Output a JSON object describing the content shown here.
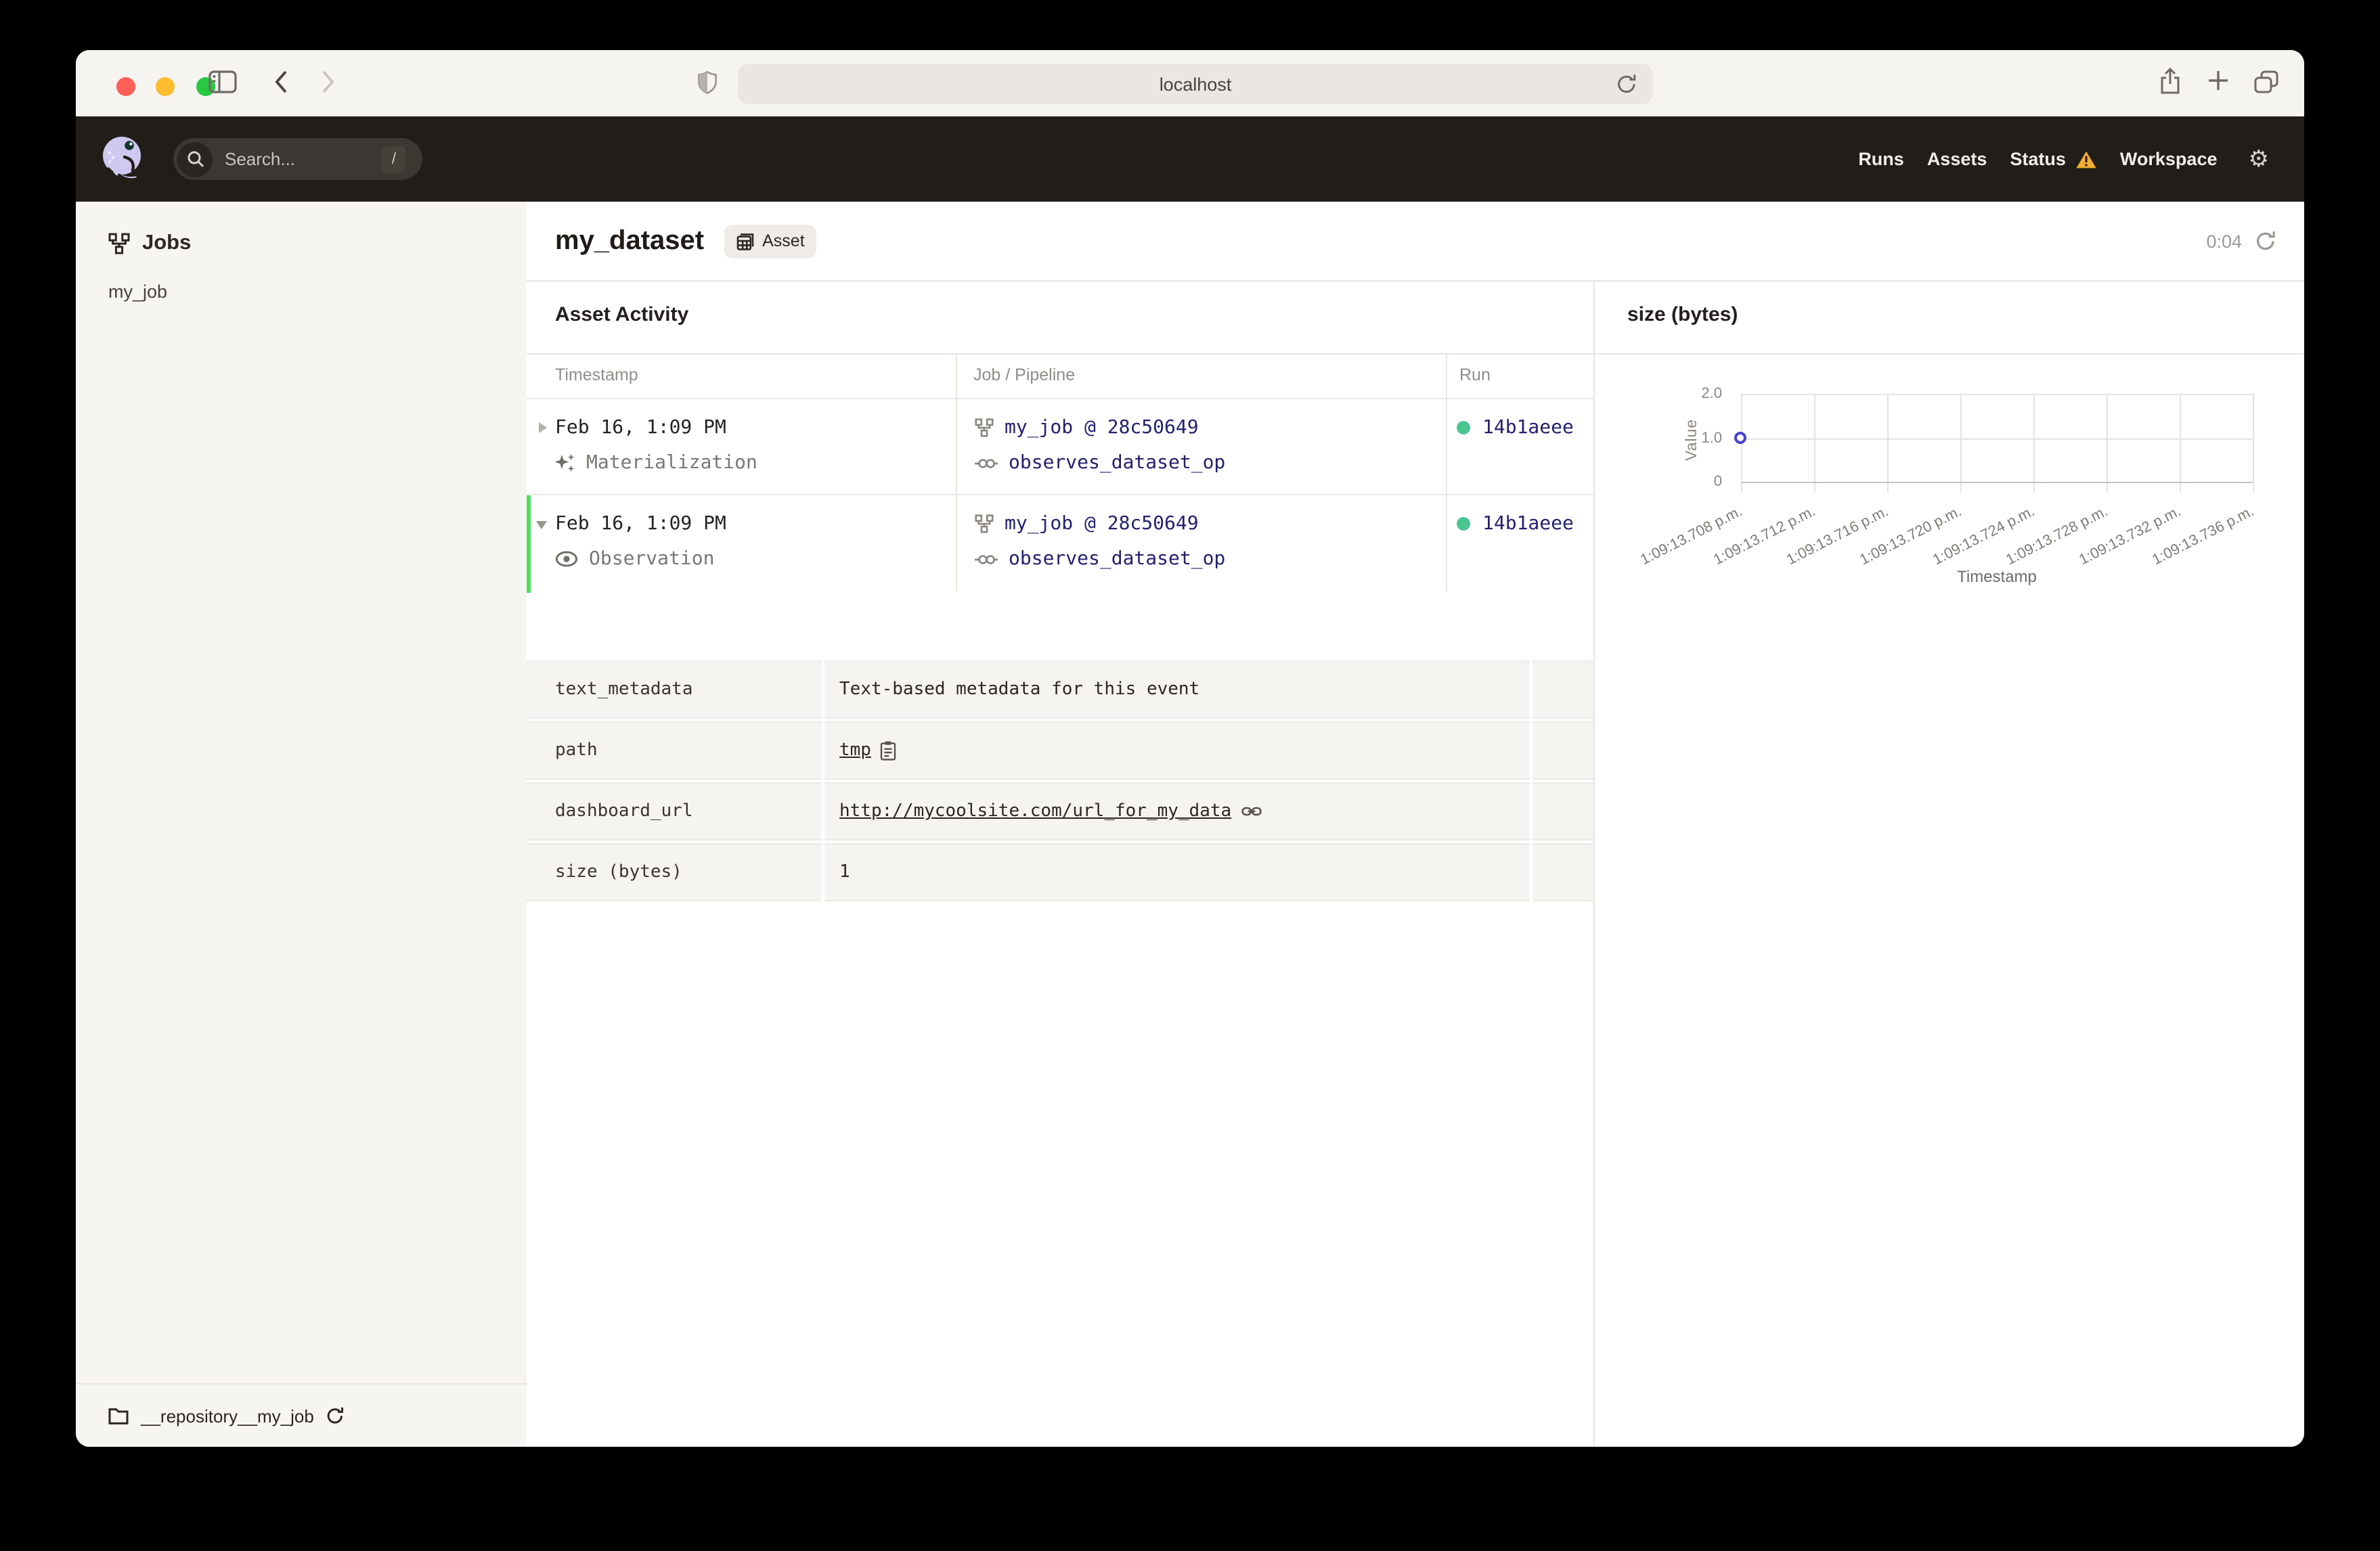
{
  "browser": {
    "url": "localhost",
    "traffic_lights": {
      "close": "#ff5f57",
      "minimize": "#febc2e",
      "zoom": "#28c840"
    }
  },
  "app_header": {
    "search_placeholder": "Search...",
    "search_shortcut": "/",
    "nav": [
      {
        "label": "Runs"
      },
      {
        "label": "Assets"
      },
      {
        "label": "Status",
        "warning": true
      },
      {
        "label": "Workspace"
      }
    ],
    "gear": "⚙"
  },
  "sidebar": {
    "title": "Jobs",
    "items": [
      {
        "label": "my_job"
      }
    ],
    "footer": {
      "repository": "__repository__my_job"
    }
  },
  "asset_page": {
    "title": "my_dataset",
    "badge": "Asset",
    "poll_timer": "0:04",
    "activity": {
      "heading": "Asset Activity",
      "columns": {
        "timestamp": "Timestamp",
        "job": "Job / Pipeline",
        "run": "Run"
      },
      "events": [
        {
          "timestamp": "Feb 16, 1:09 PM",
          "type": "Materialization",
          "expanded": false,
          "job": "my_job @ 28c50649",
          "op": "observes_dataset_op",
          "run_id": "14b1aeee",
          "run_status_color": "#4bc58f"
        },
        {
          "timestamp": "Feb 16, 1:09 PM",
          "type": "Observation",
          "expanded": true,
          "job": "my_job @ 28c50649",
          "op": "observes_dataset_op",
          "run_id": "14b1aeee",
          "run_status_color": "#4bc58f"
        }
      ],
      "metadata": [
        {
          "key": "text_metadata",
          "value": "Text-based metadata for this event"
        },
        {
          "key": "path",
          "value": "tmp",
          "icon": "copy-icon"
        },
        {
          "key": "dashboard_url",
          "value": "http://mycoolsite.com/url_for_my_data",
          "icon": "link-icon"
        },
        {
          "key": "size (bytes)",
          "value": "1"
        }
      ]
    }
  },
  "chart_data": {
    "type": "scatter",
    "title": "size (bytes)",
    "xlabel": "Timestamp",
    "ylabel": "Value",
    "x_ticks": [
      "1:09:13.708 p.m.",
      "1:09:13.712 p.m.",
      "1:09:13.716 p.m.",
      "1:09:13.720 p.m.",
      "1:09:13.724 p.m.",
      "1:09:13.728 p.m.",
      "1:09:13.732 p.m.",
      "1:09:13.736 p.m."
    ],
    "y_ticks": [
      "0",
      "1.0",
      "2.0"
    ],
    "ylim": [
      0,
      2.25
    ],
    "grid": true,
    "legend": "none",
    "points": [
      {
        "x": "1:09:13.708 p.m.",
        "y": 1.0
      }
    ],
    "point_color": "#4643cf"
  }
}
